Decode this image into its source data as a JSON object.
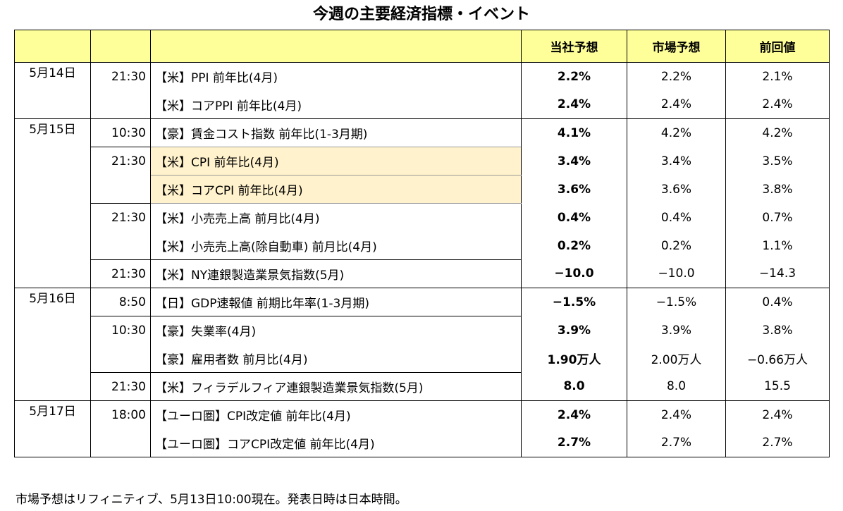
{
  "title": "今週の主要経済指標・イベント",
  "headers": {
    "blank1": "",
    "blank2": "",
    "blank3": "",
    "forecast": "当社予想",
    "market": "市場予想",
    "previous": "前回値"
  },
  "rows": [
    {
      "date": "5月14日",
      "time": "21:30",
      "event": "【米】PPI 前年比(4月)",
      "forecast": "2.2%",
      "market": "2.2%",
      "previous": "2.1%"
    },
    {
      "date": "",
      "time": "",
      "event": "【米】コアPPI 前年比(4月)",
      "forecast": "2.4%",
      "market": "2.4%",
      "previous": "2.4%"
    },
    {
      "date": "5月15日",
      "time": "10:30",
      "event": "【豪】賃金コスト指数 前年比(1-3月期)",
      "forecast": "4.1%",
      "market": "4.2%",
      "previous": "4.2%"
    },
    {
      "date": "",
      "time": "21:30",
      "event": "【米】CPI 前年比(4月)",
      "forecast": "3.4%",
      "market": "3.4%",
      "previous": "3.5%"
    },
    {
      "date": "",
      "time": "",
      "event": "【米】コアCPI 前年比(4月)",
      "forecast": "3.6%",
      "market": "3.6%",
      "previous": "3.8%"
    },
    {
      "date": "",
      "time": "21:30",
      "event": "【米】小売売上高 前月比(4月)",
      "forecast": "0.4%",
      "market": "0.4%",
      "previous": "0.7%"
    },
    {
      "date": "",
      "time": "",
      "event": "【米】小売売上高(除自動車) 前月比(4月)",
      "forecast": "0.2%",
      "market": "0.2%",
      "previous": "1.1%"
    },
    {
      "date": "",
      "time": "21:30",
      "event": "【米】NY連銀製造業景気指数(5月)",
      "forecast": "−10.0",
      "market": "−10.0",
      "previous": "−14.3"
    },
    {
      "date": "5月16日",
      "time": "8:50",
      "event": "【日】GDP速報値 前期比年率(1-3月期)",
      "forecast": "−1.5%",
      "market": "−1.5%",
      "previous": "0.4%"
    },
    {
      "date": "",
      "time": "10:30",
      "event": "【豪】失業率(4月)",
      "forecast": "3.9%",
      "market": "3.9%",
      "previous": "3.8%"
    },
    {
      "date": "",
      "time": "",
      "event": "【豪】雇用者数 前月比(4月)",
      "forecast": "1.90万人",
      "market": "2.00万人",
      "previous": "−0.66万人"
    },
    {
      "date": "",
      "time": "21:30",
      "event": "【米】フィラデルフィア連銀製造業景気指数(5月)",
      "forecast": "8.0",
      "market": "8.0",
      "previous": "15.5"
    },
    {
      "date": "5月17日",
      "time": "18:00",
      "event": "【ユーロ圏】CPI改定値 前年比(4月)",
      "forecast": "2.4%",
      "market": "2.4%",
      "previous": "2.4%"
    },
    {
      "date": "",
      "time": "",
      "event": "【ユーロ圏】コアCPI改定値 前年比(4月)",
      "forecast": "2.7%",
      "market": "2.7%",
      "previous": "2.7%"
    }
  ],
  "footnote": "市場予想はリフィニティブ、5月13日10:00現在。発表日時は日本時間。",
  "colors": {
    "header_bg": "#ffff99",
    "highlight_bg": "#fff2cc"
  }
}
